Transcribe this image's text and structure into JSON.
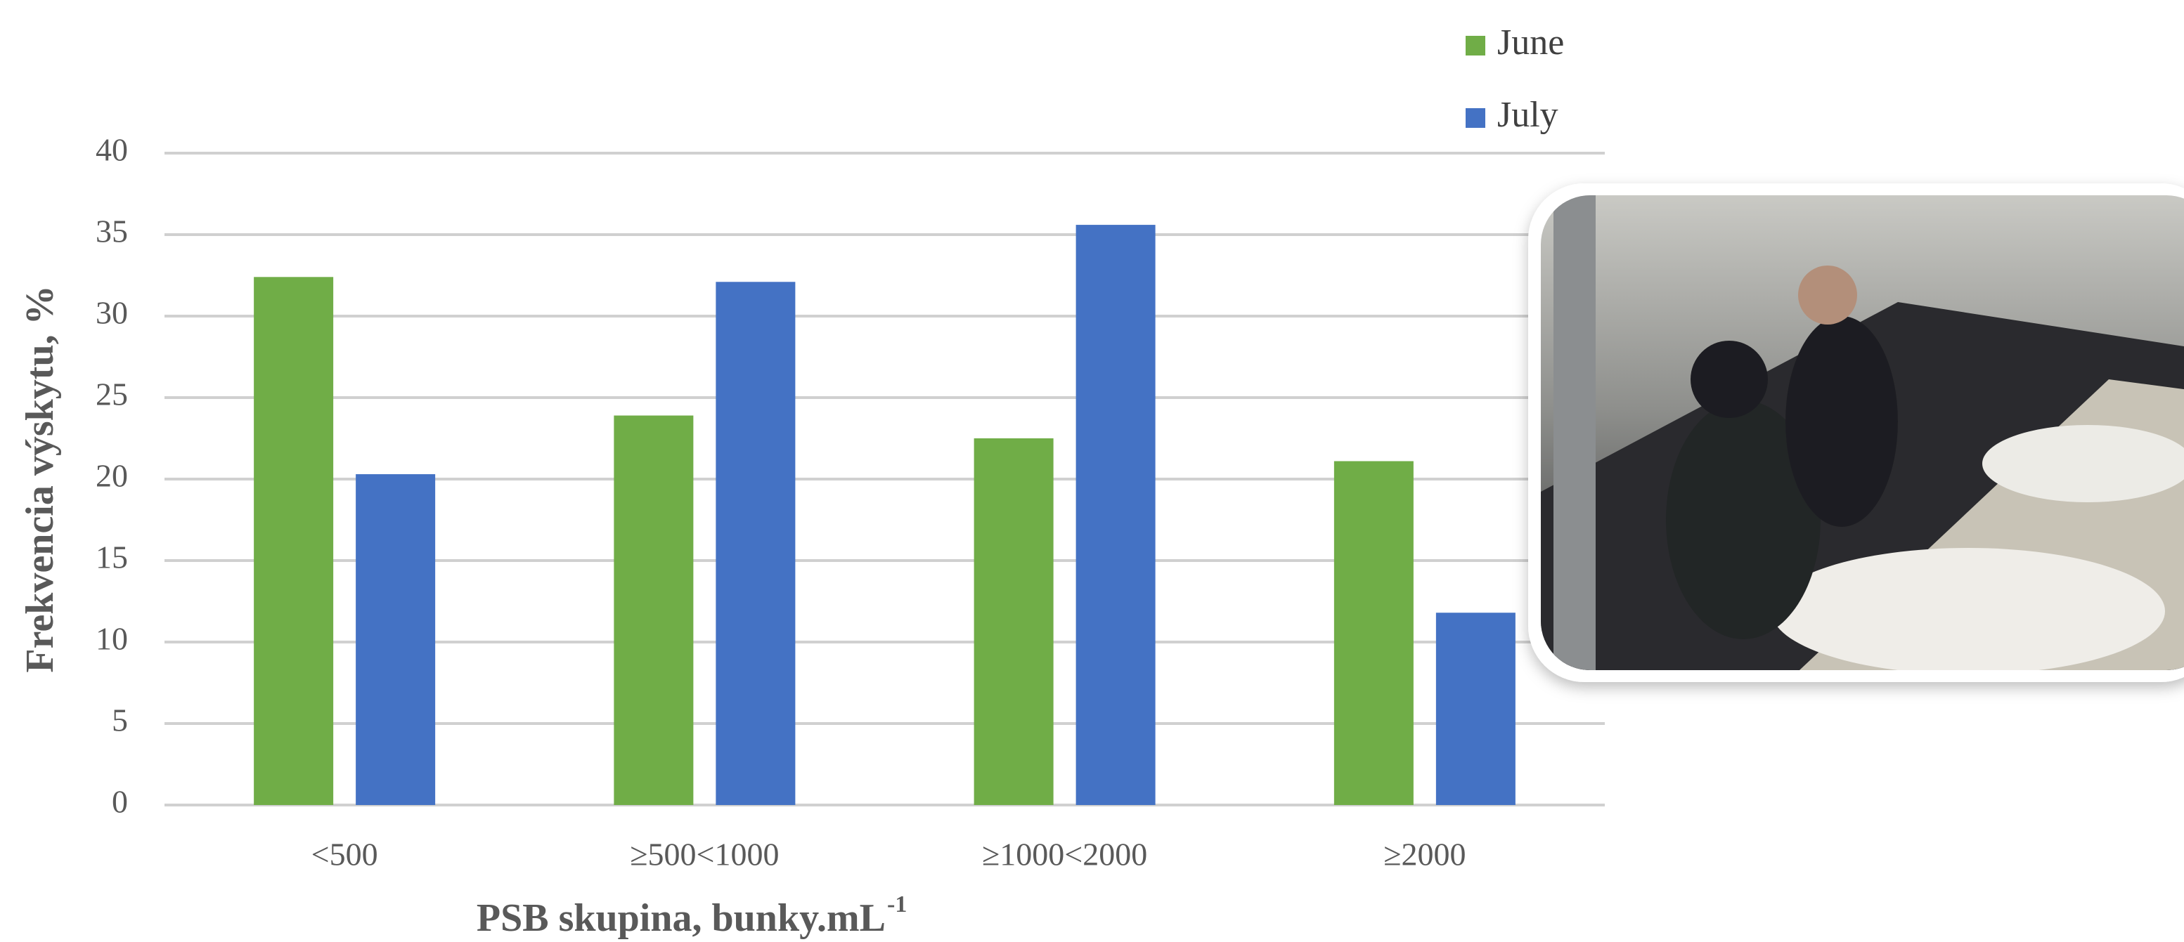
{
  "chart_data": {
    "type": "bar",
    "ylabel": "Frekvencia výskytu,  %",
    "xlabel": "PSB skupina,  bunky.mL",
    "xlabel_superscript": "-1",
    "categories": [
      "<500",
      "≥500<1000",
      "≥1000<2000",
      "≥2000"
    ],
    "series": [
      {
        "name": "June",
        "color": "#70ad47",
        "values": [
          32.4,
          23.9,
          22.5,
          21.1
        ]
      },
      {
        "name": "July",
        "color": "#4472c4",
        "values": [
          20.3,
          32.1,
          35.6,
          11.8
        ]
      }
    ],
    "ylim": [
      0,
      40
    ],
    "yticks": [
      0,
      5,
      10,
      15,
      20,
      25,
      30,
      35,
      40
    ],
    "grid": true,
    "legend": "top-right"
  }
}
